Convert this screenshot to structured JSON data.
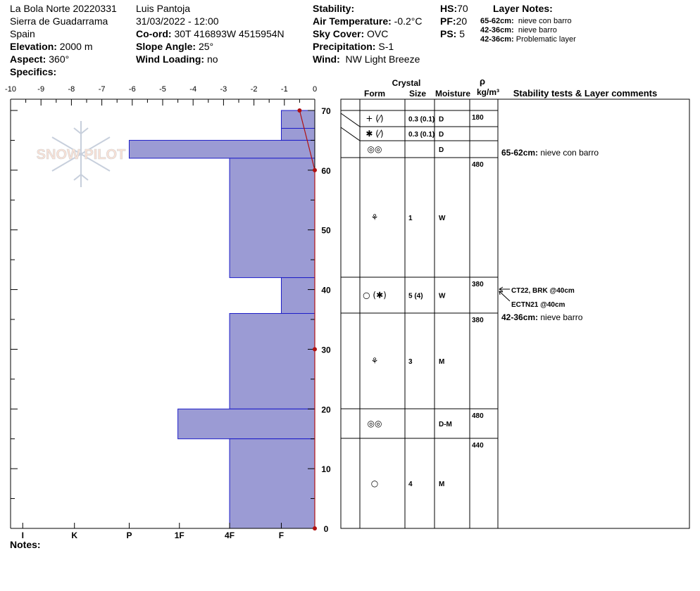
{
  "header": {
    "col1": {
      "site": "La Bola Norte 20220331",
      "range": "Sierra de Guadarrama",
      "country": "Spain",
      "elevation_label": "Elevation:",
      "elevation": "2000 m",
      "aspect_label": "Aspect:",
      "aspect": "360°",
      "specifics_label": "Specifics:"
    },
    "col2": {
      "observer": "Luis Pantoja",
      "datetime": "31/03/2022 - 12:00",
      "coord_label": "Co-ord:",
      "coord": "30T 416893W 4515954N",
      "slope_label": "Slope Angle:",
      "slope": "25°",
      "wind_loading_label": "Wind Loading:",
      "wind_loading": "no"
    },
    "col3": {
      "stability_label": "Stability:",
      "air_temp_label": "Air Temperature:",
      "air_temp": "-0.2°C",
      "sky_label": "Sky Cover:",
      "sky": "OVC",
      "precip_label": "Precipitation:",
      "precip": "S-1",
      "wind_label": "Wind:",
      "wind": "NW Light Breeze"
    },
    "col4": {
      "hs_label": "HS:",
      "hs": "70",
      "pf_label": "PF:",
      "pf": "20",
      "ps_label": "PS:",
      "ps": "5"
    },
    "layer_notes": {
      "title": "Layer Notes:",
      "items": [
        {
          "depth": "65-62cm:",
          "text": "nieve con barro"
        },
        {
          "depth": "42-36cm:",
          "text": "nieve barro"
        },
        {
          "depth": "42-36cm:",
          "text": "Problematic layer"
        }
      ]
    }
  },
  "notes_label": "Notes:",
  "watermark": "SNOW PILOT",
  "table_headers": {
    "crystal": "Crystal",
    "form": "Form",
    "size": "Size",
    "moisture": "Moisture",
    "rho": "ρ",
    "density_unit": "kg/m³",
    "comments": "Stability tests & Layer comments"
  },
  "layers": [
    {
      "form": "+ (⁄)",
      "size": "0.3 (0.1)",
      "moisture": "D"
    },
    {
      "form": "✱ (⁄)",
      "size": "0.3 (0.1)",
      "moisture": "D"
    },
    {
      "form": "◎◎",
      "size": "",
      "moisture": "D"
    },
    {
      "form": "⚘",
      "size": "1",
      "moisture": "W"
    },
    {
      "form": "○ (✱)",
      "size": "5 (4)",
      "moisture": "W"
    },
    {
      "form": "⚘",
      "size": "3",
      "moisture": "M"
    },
    {
      "form": "◎◎",
      "size": "",
      "moisture": "D-M"
    },
    {
      "form": "○",
      "size": "4",
      "moisture": "M"
    }
  ],
  "densities": [
    "180",
    "480",
    "380",
    "380",
    "480",
    "440"
  ],
  "layer_comments": [
    {
      "depth": "65-62cm:",
      "text": "nieve con barro"
    },
    {
      "depth": "42-36cm:",
      "text": "nieve barro"
    }
  ],
  "stability_tests": [
    "CT22, BRK @40cm",
    "ECTN21 @40cm"
  ],
  "chart_data": {
    "type": "bar",
    "title": "",
    "x_top_ticks": [
      "-10",
      "-9",
      "-8",
      "-7",
      "-6",
      "-5",
      "-4",
      "-3",
      "-2",
      "-1",
      "0"
    ],
    "x_bottom_ticks": [
      "I",
      "K",
      "P",
      "1F",
      "4F",
      "F"
    ],
    "y_ticks": [
      "0",
      "10",
      "20",
      "30",
      "40",
      "50",
      "60",
      "70"
    ],
    "ylim": [
      0,
      70
    ],
    "xlim": [
      -10,
      0
    ],
    "hardness_series": [
      {
        "bottom": 67,
        "top": 70,
        "hardness": "F",
        "value": -1.1
      },
      {
        "bottom": 65,
        "top": 67,
        "hardness": "F",
        "value": -1.1
      },
      {
        "bottom": 62,
        "top": 65,
        "hardness": "P",
        "value": -6.1
      },
      {
        "bottom": 42,
        "top": 62,
        "hardness": "4F",
        "value": -2.8
      },
      {
        "bottom": 36,
        "top": 42,
        "hardness": "F",
        "value": -1.1
      },
      {
        "bottom": 20,
        "top": 36,
        "hardness": "4F",
        "value": -2.8
      },
      {
        "bottom": 15,
        "top": 20,
        "hardness": "1F",
        "value": -4.5
      },
      {
        "bottom": 0,
        "top": 15,
        "hardness": "4F",
        "value": -2.8
      }
    ],
    "temperature_series": [
      {
        "height": 70,
        "temp": -0.5
      },
      {
        "height": 60,
        "temp": 0
      },
      {
        "height": 30,
        "temp": 0
      },
      {
        "height": 0,
        "temp": 0
      }
    ],
    "bar_color": "#9b9bd4",
    "bar_edge": "#1e1ec8",
    "temp_color": "#b01010"
  }
}
